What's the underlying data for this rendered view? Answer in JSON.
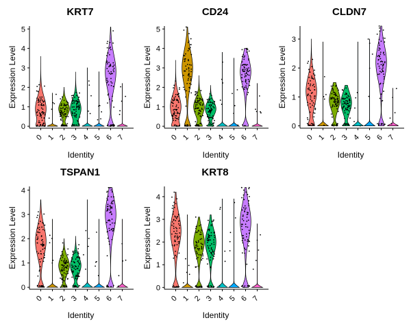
{
  "figure": {
    "cluster_colors": [
      "#F8766D",
      "#CD9600",
      "#7CAE00",
      "#00BE67",
      "#00BFC4",
      "#00A9FF",
      "#C77CFF",
      "#FF61CC"
    ]
  },
  "chart_data": [
    {
      "type": "violin",
      "title": "KRT7",
      "xlabel": "Identity",
      "ylabel": "Expression Level",
      "categories": [
        "0",
        "1",
        "2",
        "3",
        "4",
        "5",
        "6",
        "7"
      ],
      "yticks": [
        0,
        1,
        2,
        3,
        4,
        5
      ],
      "ylim": [
        -0.1,
        5.15
      ],
      "max": [
        3.6,
        1.7,
        2.0,
        2.8,
        3.0,
        2.8,
        5.1,
        2.2
      ],
      "median": [
        0.9,
        0.0,
        0.9,
        0.9,
        0.0,
        0.0,
        2.8,
        0.0
      ]
    },
    {
      "type": "violin",
      "title": "CD24",
      "xlabel": "Identity",
      "ylabel": "Expression Level",
      "categories": [
        "0",
        "1",
        "2",
        "3",
        "4",
        "5",
        "6",
        "7"
      ],
      "yticks": [
        0,
        1,
        2,
        3,
        4,
        5
      ],
      "ylim": [
        -0.1,
        5.15
      ],
      "max": [
        3.4,
        5.1,
        2.6,
        2.1,
        3.8,
        3.5,
        4.0,
        2.2
      ],
      "median": [
        1.0,
        3.0,
        1.0,
        0.9,
        0.0,
        0.0,
        2.8,
        0.0
      ]
    },
    {
      "type": "violin",
      "title": "CLDN7",
      "xlabel": "Identity",
      "ylabel": "Expression Level",
      "categories": [
        "0",
        "1",
        "2",
        "3",
        "4",
        "5",
        "6",
        "7"
      ],
      "yticks": [
        0,
        1,
        2,
        3
      ],
      "ylim": [
        -0.08,
        3.45
      ],
      "max": [
        3.0,
        2.9,
        1.5,
        1.4,
        2.9,
        3.0,
        3.45,
        1.3
      ],
      "median": [
        1.2,
        0.0,
        0.9,
        0.8,
        0.0,
        0.0,
        2.2,
        0.0
      ]
    },
    {
      "type": "violin",
      "title": "TSPAN1",
      "xlabel": "Identity",
      "ylabel": "Expression Level",
      "categories": [
        "0",
        "1",
        "2",
        "3",
        "4",
        "5",
        "6",
        "7"
      ],
      "yticks": [
        0,
        1,
        2,
        3,
        4
      ],
      "ylim": [
        -0.08,
        4.15
      ],
      "max": [
        3.6,
        2.8,
        2.0,
        2.1,
        3.6,
        2.8,
        4.1,
        2.8
      ],
      "median": [
        1.9,
        0.0,
        0.9,
        0.9,
        0.0,
        0.0,
        3.0,
        0.0
      ]
    },
    {
      "type": "violin",
      "title": "KRT8",
      "xlabel": "Identity",
      "ylabel": "Expression Level",
      "categories": [
        "0",
        "1",
        "2",
        "3",
        "4",
        "5",
        "6",
        "7"
      ],
      "yticks": [
        0,
        1,
        2,
        3,
        4
      ],
      "ylim": [
        -0.08,
        4.45
      ],
      "max": [
        4.2,
        3.2,
        3.1,
        3.2,
        3.9,
        3.9,
        4.4,
        2.8
      ],
      "median": [
        2.5,
        0.0,
        2.0,
        2.0,
        0.0,
        0.0,
        2.9,
        0.0
      ]
    }
  ]
}
